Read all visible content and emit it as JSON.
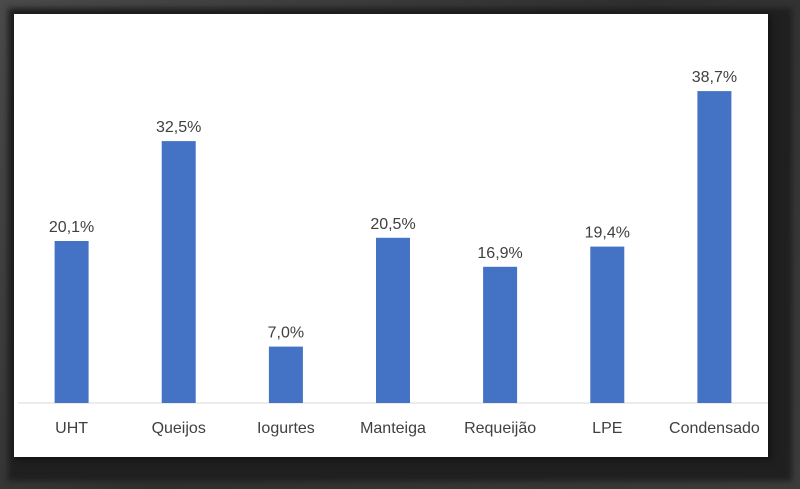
{
  "chart_data": {
    "type": "bar",
    "categories": [
      "UHT",
      "Queijos",
      "Iogurtes",
      "Manteiga",
      "Requeijão",
      "LPE",
      "Condensado"
    ],
    "values": [
      20.1,
      32.5,
      7.0,
      20.5,
      16.9,
      19.4,
      38.7
    ],
    "data_labels": [
      "20,1%",
      "32,5%",
      "7,0%",
      "20,5%",
      "16,9%",
      "19,4%",
      "38,7%"
    ],
    "title": "",
    "xlabel": "",
    "ylabel": "",
    "ylim": [
      0,
      42
    ],
    "grid": false,
    "legend": "none",
    "bar_color": "#4472C4",
    "baseline_color": "#D9D9D9"
  }
}
